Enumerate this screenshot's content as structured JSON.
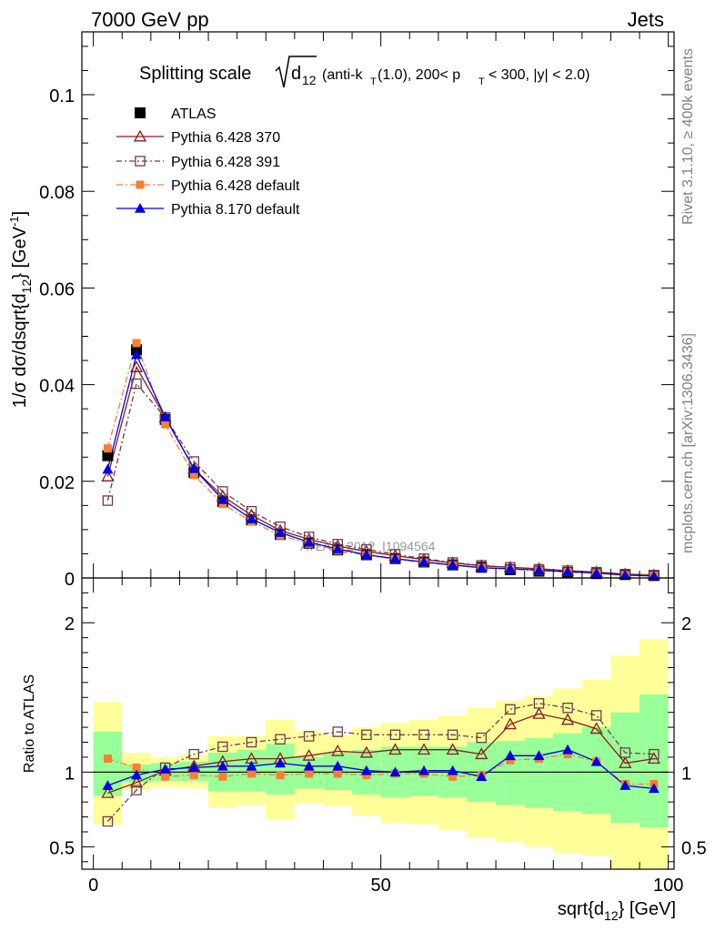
{
  "header": {
    "left": "7000 GeV pp",
    "right": "Jets"
  },
  "side_labels": {
    "rivet": "Rivet 3.1.10, ≥ 400k events",
    "mcplots": "mcplots.cern.ch [arXiv:1306.3436]"
  },
  "chart_data": [
    {
      "type": "scatter",
      "title_main": "Splitting scale",
      "title_d": "d",
      "title_d_sub": "12",
      "title_rest_a": "(anti-k",
      "title_rest_a_sub": "T",
      "title_rest_b": "(1.0), 200< p",
      "title_rest_b_sub": "T",
      "title_rest_c": "< 300, |y| < 2.0)",
      "ylabel_parts": [
        "1/σ dσ/dsqrt{d",
        "12",
        "} [GeV",
        "-1",
        "]"
      ],
      "watermark": "ATLAS_2012_I1094564",
      "xlim": [
        -2,
        101
      ],
      "ylim": [
        0,
        0.113
      ],
      "yticks": [
        0,
        0.02,
        0.04,
        0.06,
        0.08,
        0.1
      ],
      "ytick_labels": [
        "0",
        "0.02",
        "0.04",
        "0.06",
        "0.08",
        "0.1"
      ],
      "x": [
        2.5,
        7.5,
        12.5,
        17.5,
        22.5,
        27.5,
        32.5,
        37.5,
        42.5,
        47.5,
        52.5,
        57.5,
        62.5,
        67.5,
        72.5,
        77.5,
        82.5,
        87.5,
        92.5,
        97.5
      ],
      "legend_position": "top-left",
      "series": [
        {
          "name": "ATLAS",
          "color": "#000000",
          "marker": "square-filled",
          "values": [
            0.0253,
            0.0472,
            0.0328,
            0.0218,
            0.0158,
            0.012,
            0.009,
            0.0072,
            0.0058,
            0.0048,
            0.004,
            0.0033,
            0.0027,
            0.0022,
            0.0017,
            0.0014,
            0.0011,
            0.0009,
            0.0007,
            0.0005
          ]
        },
        {
          "name": "Pythia 6.428 370",
          "color": "#8b1a1a",
          "marker": "triangle-open",
          "values": [
            0.021,
            0.0436,
            0.0332,
            0.0226,
            0.0169,
            0.013,
            0.0098,
            0.008,
            0.0066,
            0.0055,
            0.0046,
            0.0038,
            0.0031,
            0.0025,
            0.0022,
            0.0019,
            0.0015,
            0.0012,
            0.0008,
            0.0006
          ]
        },
        {
          "name": "Pythia 6.428 391",
          "color": "#6e3b4e",
          "marker": "square-open",
          "values": [
            0.016,
            0.0402,
            0.0332,
            0.0241,
            0.0179,
            0.0138,
            0.0106,
            0.0085,
            0.007,
            0.0059,
            0.0049,
            0.004,
            0.0032,
            0.0026,
            0.0022,
            0.0018,
            0.0015,
            0.0012,
            0.0008,
            0.0006
          ]
        },
        {
          "name": "Pythia 6.428 default",
          "color": "#f57f32",
          "marker": "square-filled-small",
          "values": [
            0.0268,
            0.0486,
            0.0318,
            0.0213,
            0.0153,
            0.0117,
            0.0088,
            0.0071,
            0.0057,
            0.0047,
            0.0039,
            0.0032,
            0.0026,
            0.0021,
            0.0018,
            0.0015,
            0.0012,
            0.001,
            0.0006,
            0.0005
          ]
        },
        {
          "name": "Pythia 8.170 default",
          "color": "#0000e6",
          "marker": "triangle-filled",
          "values": [
            0.0225,
            0.0462,
            0.0333,
            0.0226,
            0.0162,
            0.0122,
            0.0094,
            0.0074,
            0.006,
            0.0048,
            0.004,
            0.0033,
            0.0027,
            0.0021,
            0.0019,
            0.0016,
            0.0013,
            0.001,
            0.0006,
            0.0004
          ]
        }
      ]
    },
    {
      "type": "scatter",
      "ylabel": "Ratio to ATLAS",
      "xlabel_main": "sqrt{d",
      "xlabel_sub": "12",
      "xlabel_end": "} [GeV]",
      "xlim": [
        -2,
        101
      ],
      "ylim": [
        0.35,
        2.3
      ],
      "yticks": [
        0.5,
        1,
        2
      ],
      "ytick_labels": [
        "0.5",
        "1",
        "2"
      ],
      "xticks": [
        0,
        50,
        100
      ],
      "xtick_labels": [
        "0",
        "50",
        "100"
      ],
      "x": [
        2.5,
        7.5,
        12.5,
        17.5,
        22.5,
        27.5,
        32.5,
        37.5,
        42.5,
        47.5,
        52.5,
        57.5,
        62.5,
        67.5,
        72.5,
        77.5,
        82.5,
        87.5,
        92.5,
        97.5
      ],
      "bands": {
        "inner_color": "#99ff99",
        "outer_color": "#ffff99",
        "inner": [
          [
            0.84,
            1.27
          ],
          [
            0.93,
            1.05
          ],
          [
            0.94,
            1.06
          ],
          [
            0.94,
            1.07
          ],
          [
            0.87,
            1.13
          ],
          [
            0.87,
            1.15
          ],
          [
            0.85,
            1.19
          ],
          [
            0.89,
            1.1
          ],
          [
            0.88,
            1.13
          ],
          [
            0.85,
            1.15
          ],
          [
            0.83,
            1.17
          ],
          [
            0.84,
            1.17
          ],
          [
            0.83,
            1.17
          ],
          [
            0.8,
            1.2
          ],
          [
            0.78,
            1.21
          ],
          [
            0.76,
            1.23
          ],
          [
            0.74,
            1.26
          ],
          [
            0.72,
            1.3
          ],
          [
            0.66,
            1.4
          ],
          [
            0.63,
            1.52
          ]
        ],
        "outer": [
          [
            0.65,
            1.47
          ],
          [
            0.88,
            1.13
          ],
          [
            0.9,
            1.1
          ],
          [
            0.89,
            1.12
          ],
          [
            0.76,
            1.24
          ],
          [
            0.78,
            1.24
          ],
          [
            0.68,
            1.35
          ],
          [
            0.79,
            1.27
          ],
          [
            0.77,
            1.25
          ],
          [
            0.71,
            1.3
          ],
          [
            0.66,
            1.33
          ],
          [
            0.65,
            1.35
          ],
          [
            0.61,
            1.38
          ],
          [
            0.56,
            1.43
          ],
          [
            0.53,
            1.48
          ],
          [
            0.5,
            1.51
          ],
          [
            0.46,
            1.56
          ],
          [
            0.44,
            1.62
          ],
          [
            0.35,
            1.78
          ],
          [
            0.35,
            1.89
          ]
        ]
      },
      "series": [
        {
          "name": "Pythia 6.428 370",
          "color": "#8b1a1a",
          "marker": "triangle-open",
          "values": [
            0.86,
            0.93,
            1.01,
            1.04,
            1.07,
            1.09,
            1.09,
            1.11,
            1.14,
            1.13,
            1.15,
            1.15,
            1.15,
            1.12,
            1.32,
            1.39,
            1.35,
            1.29,
            1.06,
            1.09
          ]
        },
        {
          "name": "Pythia 6.428 391",
          "color": "#6e3b4e",
          "marker": "square-open",
          "values": [
            0.67,
            0.88,
            1.03,
            1.12,
            1.17,
            1.2,
            1.22,
            1.24,
            1.27,
            1.25,
            1.25,
            1.25,
            1.25,
            1.23,
            1.42,
            1.46,
            1.43,
            1.38,
            1.13,
            1.12
          ]
        },
        {
          "name": "Pythia 6.428 default",
          "color": "#f57f32",
          "marker": "square-filled-small",
          "values": [
            1.09,
            1.03,
            0.97,
            0.98,
            0.97,
            0.99,
            0.98,
            0.99,
            0.99,
            0.98,
            0.99,
            0.99,
            0.97,
            0.98,
            1.08,
            1.09,
            1.12,
            1.07,
            0.92,
            0.92
          ]
        },
        {
          "name": "Pythia 8.170 default",
          "color": "#0000e6",
          "marker": "triangle-filled",
          "values": [
            0.91,
            0.98,
            1.02,
            1.03,
            1.04,
            1.04,
            1.06,
            1.04,
            1.04,
            1.01,
            1.0,
            1.01,
            1.01,
            0.97,
            1.11,
            1.11,
            1.15,
            1.07,
            0.91,
            0.89
          ]
        }
      ]
    }
  ]
}
